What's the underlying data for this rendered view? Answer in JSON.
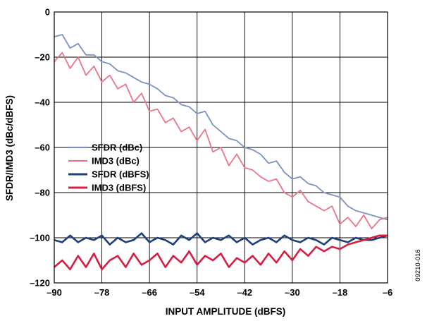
{
  "figure_id": "09210-016",
  "chart_data": {
    "type": "line",
    "title": "",
    "xlabel": "INPUT AMPLITUDE (dBFS)",
    "ylabel": "SFDR/IMD3 (dBc/dBFS)",
    "xlim": [
      -90,
      -6
    ],
    "ylim": [
      -120,
      0
    ],
    "xticks": [
      -90,
      -78,
      -66,
      -54,
      -42,
      -30,
      -18,
      -6
    ],
    "yticks": [
      0,
      -20,
      -40,
      -60,
      -80,
      -100,
      -120
    ],
    "xtick_labels": [
      "–90",
      "–78",
      "–66",
      "–54",
      "–42",
      "–30",
      "–18",
      "–6"
    ],
    "ytick_labels": [
      "0",
      "–20",
      "–40",
      "–60",
      "–80",
      "–100",
      "–120"
    ],
    "grid": true,
    "legend_position": "left-middle",
    "series": [
      {
        "name": "SFDR (dBc)",
        "color": "#7b93bd",
        "x": [
          -90,
          -88,
          -86,
          -84,
          -82,
          -80,
          -78,
          -76,
          -74,
          -72,
          -70,
          -68,
          -66,
          -64,
          -62,
          -60,
          -58,
          -56,
          -54,
          -52,
          -50,
          -48,
          -46,
          -44,
          -42,
          -40,
          -38,
          -36,
          -34,
          -32,
          -30,
          -28,
          -26,
          -24,
          -22,
          -20,
          -18,
          -16,
          -14,
          -12,
          -10,
          -8,
          -6
        ],
        "values": [
          -11,
          -10,
          -16,
          -14,
          -19,
          -19,
          -22,
          -23,
          -26,
          -27,
          -29,
          -31,
          -32,
          -34,
          -37,
          -38,
          -41,
          -42,
          -45,
          -44,
          -50,
          -53,
          -56,
          -57,
          -60,
          -61,
          -63,
          -67,
          -66,
          -71,
          -74,
          -73,
          -76,
          -77,
          -80,
          -81,
          -82,
          -86,
          -88,
          -89,
          -90,
          -91,
          -92
        ]
      },
      {
        "name": "IMD3 (dBc)",
        "color": "#e8758a",
        "x": [
          -90,
          -88,
          -86,
          -84,
          -82,
          -80,
          -78,
          -76,
          -74,
          -72,
          -70,
          -68,
          -66,
          -64,
          -62,
          -60,
          -58,
          -56,
          -54,
          -52,
          -50,
          -48,
          -46,
          -44,
          -42,
          -40,
          -38,
          -36,
          -34,
          -32,
          -30,
          -28,
          -26,
          -24,
          -22,
          -20,
          -18,
          -16,
          -14,
          -12,
          -10,
          -8,
          -6
        ],
        "values": [
          -22,
          -18,
          -25,
          -20,
          -28,
          -24,
          -31,
          -28,
          -34,
          -32,
          -40,
          -36,
          -44,
          -43,
          -49,
          -47,
          -53,
          -51,
          -57,
          -52,
          -62,
          -60,
          -68,
          -63,
          -69,
          -70,
          -73,
          -75,
          -74,
          -80,
          -82,
          -79,
          -84,
          -86,
          -88,
          -86,
          -94,
          -91,
          -95,
          -90,
          -96,
          -92,
          -91
        ]
      },
      {
        "name": "SFDR (dBFS)",
        "color": "#1e3f7a",
        "x": [
          -90,
          -88,
          -86,
          -84,
          -82,
          -80,
          -78,
          -76,
          -74,
          -72,
          -70,
          -68,
          -66,
          -64,
          -62,
          -60,
          -58,
          -56,
          -54,
          -52,
          -50,
          -48,
          -46,
          -44,
          -42,
          -40,
          -38,
          -36,
          -34,
          -32,
          -30,
          -28,
          -26,
          -24,
          -22,
          -20,
          -18,
          -16,
          -14,
          -12,
          -10,
          -8,
          -6
        ],
        "values": [
          -101,
          -102,
          -99,
          -102,
          -100,
          -101,
          -99,
          -103,
          -100,
          -102,
          -101,
          -98,
          -102,
          -100,
          -101,
          -103,
          -99,
          -101,
          -98,
          -102,
          -100,
          -101,
          -99,
          -102,
          -100,
          -103,
          -101,
          -100,
          -102,
          -99,
          -101,
          -102,
          -100,
          -101,
          -103,
          -100,
          -101,
          -102,
          -100,
          -101,
          -101,
          -100,
          -99
        ]
      },
      {
        "name": "IMD3 (dBFS)",
        "color": "#d81d43",
        "x": [
          -90,
          -88,
          -86,
          -84,
          -82,
          -80,
          -78,
          -76,
          -74,
          -72,
          -70,
          -68,
          -66,
          -64,
          -62,
          -60,
          -58,
          -56,
          -54,
          -52,
          -50,
          -48,
          -46,
          -44,
          -42,
          -40,
          -38,
          -36,
          -34,
          -32,
          -30,
          -28,
          -26,
          -24,
          -22,
          -20,
          -18,
          -16,
          -14,
          -12,
          -10,
          -8,
          -6
        ],
        "values": [
          -113,
          -110,
          -114,
          -108,
          -113,
          -107,
          -114,
          -110,
          -108,
          -113,
          -107,
          -112,
          -110,
          -107,
          -113,
          -108,
          -111,
          -106,
          -112,
          -108,
          -110,
          -107,
          -113,
          -109,
          -111,
          -108,
          -112,
          -107,
          -111,
          -106,
          -110,
          -105,
          -108,
          -104,
          -106,
          -104,
          -105,
          -103,
          -102,
          -101,
          -100,
          -99,
          -99
        ]
      }
    ]
  }
}
